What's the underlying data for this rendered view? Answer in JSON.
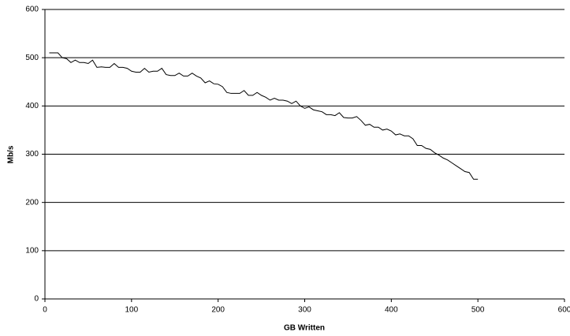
{
  "chart_data": {
    "type": "line",
    "x_label": "GB Written",
    "y_label": "Mb/s",
    "x": [
      5,
      10,
      15,
      20,
      25,
      30,
      35,
      40,
      45,
      50,
      55,
      60,
      65,
      70,
      75,
      80,
      85,
      90,
      95,
      100,
      105,
      110,
      115,
      120,
      125,
      130,
      135,
      140,
      145,
      150,
      155,
      160,
      165,
      170,
      175,
      180,
      185,
      190,
      195,
      200,
      205,
      210,
      215,
      220,
      225,
      230,
      235,
      240,
      245,
      250,
      255,
      260,
      265,
      270,
      275,
      280,
      285,
      290,
      295,
      300,
      305,
      310,
      315,
      320,
      325,
      330,
      335,
      340,
      345,
      350,
      355,
      360,
      365,
      370,
      375,
      380,
      385,
      390,
      395,
      400,
      405,
      410,
      415,
      420,
      425,
      430,
      435,
      440,
      445,
      450,
      455,
      460,
      465,
      470,
      475,
      480,
      485,
      490,
      495,
      500
    ],
    "series": [
      {
        "name": "Mb/s",
        "color": "#000000",
        "values": [
          510,
          510,
          510,
          500,
          498,
          490,
          495,
          490,
          490,
          488,
          495,
          480,
          481,
          480,
          480,
          488,
          480,
          480,
          478,
          472,
          470,
          470,
          478,
          470,
          472,
          472,
          478,
          465,
          463,
          463,
          468,
          462,
          462,
          468,
          462,
          458,
          448,
          452,
          446,
          445,
          440,
          428,
          426,
          426,
          426,
          432,
          422,
          422,
          428,
          422,
          418,
          412,
          416,
          412,
          412,
          410,
          405,
          410,
          400,
          395,
          398,
          392,
          390,
          388,
          382,
          382,
          380,
          386,
          376,
          375,
          375,
          378,
          370,
          360,
          362,
          356,
          356,
          350,
          352,
          348,
          340,
          342,
          338,
          338,
          332,
          318,
          318,
          312,
          310,
          303,
          298,
          292,
          288,
          282,
          276,
          270,
          264,
          262,
          248,
          248
        ]
      }
    ],
    "xlim": [
      0,
      600
    ],
    "xticks": [
      0,
      100,
      200,
      300,
      400,
      500,
      600
    ],
    "ylim": [
      0,
      600
    ],
    "yticks": [
      0,
      100,
      200,
      300,
      400,
      500,
      600
    ],
    "grid": true
  }
}
